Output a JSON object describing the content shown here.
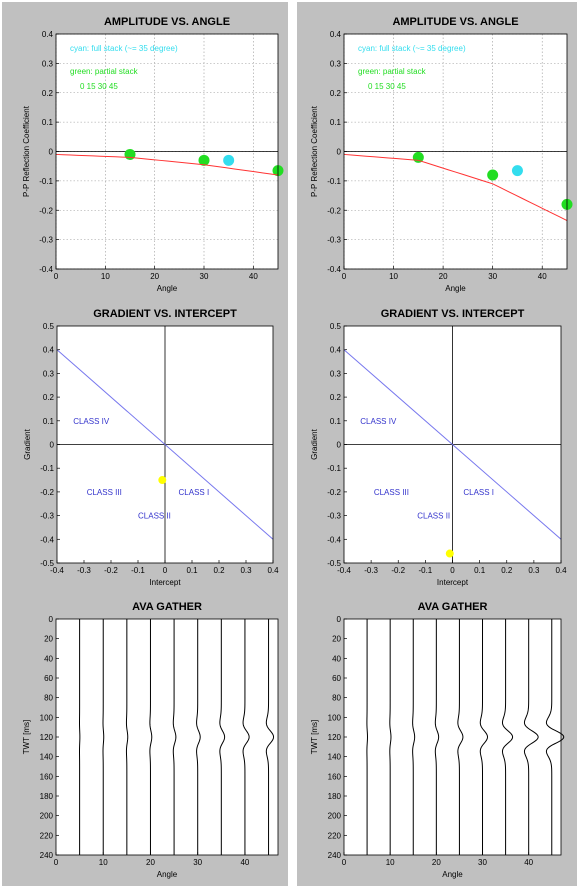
{
  "colors": {
    "panel_bg": "#c0c0c0",
    "plot_bg": "#ffffff",
    "partial_stack": "#22dd22",
    "full_stack": "#33ddee",
    "trend_line": "#ff3333",
    "intercept_line": "#7777ee",
    "class_label": "#3333cc",
    "gradient_intercept_point": "#ffff00",
    "wiggle": "#000000"
  },
  "chart_data": [
    {
      "id": "left-ava",
      "type": "scatter",
      "title": "AMPLITUDE VS. ANGLE",
      "xlabel": "Angle",
      "ylabel": "P-P Reflection Coefficient",
      "xlim": [
        0,
        45
      ],
      "ylim": [
        -0.4,
        0.4
      ],
      "xticks": [
        "0",
        "10",
        "20",
        "30",
        "40"
      ],
      "yticks": [
        "0.4",
        "0.3",
        "0.2",
        "0.1",
        "0",
        "-0.1",
        "-0.2",
        "-0.3",
        "-0.4"
      ],
      "grid": true,
      "annotations": [
        "cyan: full stack  (~=   35 degree)",
        "green: partial stack",
        "0  15  30  45"
      ],
      "series": [
        {
          "color": "#22dd22",
          "x": [
            15,
            30,
            45
          ],
          "y": [
            -0.01,
            -0.03,
            -0.065
          ]
        },
        {
          "color": "#33ddee",
          "x": [
            35
          ],
          "y": [
            -0.03
          ]
        },
        {
          "color": "#ff3333",
          "line": true,
          "x": [
            0,
            15,
            30,
            45
          ],
          "y": [
            -0.01,
            -0.02,
            -0.045,
            -0.08
          ]
        }
      ]
    },
    {
      "id": "right-ava",
      "type": "scatter",
      "title": "AMPLITUDE VS. ANGLE",
      "xlabel": "Angle",
      "ylabel": "P-P Reflection Coefficient",
      "xlim": [
        0,
        45
      ],
      "ylim": [
        -0.4,
        0.4
      ],
      "xticks": [
        "0",
        "10",
        "20",
        "30",
        "40"
      ],
      "yticks": [
        "0.4",
        "0.3",
        "0.2",
        "0.1",
        "0",
        "-0.1",
        "-0.2",
        "-0.3",
        "-0.4"
      ],
      "grid": true,
      "annotations": [
        "cyan: full stack  (~=   35 degree)",
        "green: partial stack",
        "0  15  30  45"
      ],
      "series": [
        {
          "color": "#22dd22",
          "x": [
            15,
            30,
            45
          ],
          "y": [
            -0.02,
            -0.08,
            -0.18
          ]
        },
        {
          "color": "#33ddee",
          "x": [
            35
          ],
          "y": [
            -0.065
          ]
        },
        {
          "color": "#ff3333",
          "line": true,
          "x": [
            0,
            15,
            30,
            45
          ],
          "y": [
            -0.01,
            -0.03,
            -0.11,
            -0.235
          ]
        }
      ]
    },
    {
      "id": "left-gi",
      "type": "scatter",
      "title": "GRADIENT VS. INTERCEPT",
      "xlabel": "Intercept",
      "ylabel": "Gradient",
      "xlim": [
        -0.4,
        0.4
      ],
      "ylim": [
        -0.5,
        0.5
      ],
      "xticks": [
        "-0.4",
        "-0.3",
        "-0.2",
        "-0.1",
        "0",
        "0.1",
        "0.2",
        "0.3",
        "0.4"
      ],
      "yticks": [
        "0.5",
        "0.4",
        "0.3",
        "0.2",
        "0.1",
        "0",
        "-0.1",
        "-0.2",
        "-0.3",
        "-0.4",
        "-0.5"
      ],
      "grid": false,
      "class_labels": [
        {
          "text": "CLASS IV",
          "x": -0.34,
          "y": 0.1
        },
        {
          "text": "CLASS III",
          "x": -0.29,
          "y": -0.2
        },
        {
          "text": "CLASS I",
          "x": 0.05,
          "y": -0.2
        },
        {
          "text": "CLASS II",
          "x": -0.1,
          "y": -0.3
        }
      ],
      "series": [
        {
          "color": "#7777ee",
          "line": true,
          "x": [
            -0.4,
            0.4
          ],
          "y": [
            0.4,
            -0.4
          ]
        },
        {
          "color": "#ffff00",
          "x": [
            -0.01
          ],
          "y": [
            -0.15
          ]
        }
      ]
    },
    {
      "id": "right-gi",
      "type": "scatter",
      "title": "GRADIENT VS. INTERCEPT",
      "xlabel": "Intercept",
      "ylabel": "Gradient",
      "xlim": [
        -0.4,
        0.4
      ],
      "ylim": [
        -0.5,
        0.5
      ],
      "xticks": [
        "-0.4",
        "-0.3",
        "-0.2",
        "-0.1",
        "0",
        "0.1",
        "0.2",
        "0.3",
        "0.4"
      ],
      "yticks": [
        "0.5",
        "0.4",
        "0.3",
        "0.2",
        "0.1",
        "0",
        "-0.1",
        "-0.2",
        "-0.3",
        "-0.4",
        "-0.5"
      ],
      "grid": false,
      "class_labels": [
        {
          "text": "CLASS IV",
          "x": -0.34,
          "y": 0.1
        },
        {
          "text": "CLASS III",
          "x": -0.29,
          "y": -0.2
        },
        {
          "text": "CLASS I",
          "x": 0.04,
          "y": -0.2
        },
        {
          "text": "CLASS II",
          "x": -0.13,
          "y": -0.3
        }
      ],
      "series": [
        {
          "color": "#7777ee",
          "line": true,
          "x": [
            -0.4,
            0.4
          ],
          "y": [
            0.4,
            -0.4
          ]
        },
        {
          "color": "#ffff00",
          "x": [
            -0.01
          ],
          "y": [
            -0.46
          ]
        }
      ]
    },
    {
      "id": "left-gather",
      "type": "line",
      "title": "AVA GATHER",
      "xlabel": "Angle",
      "ylabel": "TWT [ms]",
      "xlim": [
        0,
        47
      ],
      "ylim": [
        240,
        0
      ],
      "xticks": [
        "0",
        "10",
        "20",
        "30",
        "40"
      ],
      "yticks": [
        "0",
        "20",
        "40",
        "60",
        "80",
        "100",
        "120",
        "140",
        "160",
        "180",
        "200",
        "220",
        "240"
      ],
      "grid": false,
      "event_ms": 120,
      "traces": [
        {
          "angle": 5,
          "amp": 0.25
        },
        {
          "angle": 10,
          "amp": 0.5
        },
        {
          "angle": 15,
          "amp": 0.9
        },
        {
          "angle": 20,
          "amp": 1.3
        },
        {
          "angle": 25,
          "amp": 1.8
        },
        {
          "angle": 30,
          "amp": 2.5
        },
        {
          "angle": 35,
          "amp": 3.3
        },
        {
          "angle": 40,
          "amp": 4.2
        },
        {
          "angle": 45,
          "amp": 5.0
        }
      ]
    },
    {
      "id": "right-gather",
      "type": "line",
      "title": "AVA GATHER",
      "xlabel": "Angle",
      "ylabel": "TWT [ms]",
      "xlim": [
        0,
        47
      ],
      "ylim": [
        240,
        0
      ],
      "xticks": [
        "0",
        "10",
        "20",
        "30",
        "40"
      ],
      "yticks": [
        "0",
        "20",
        "40",
        "60",
        "80",
        "100",
        "120",
        "140",
        "160",
        "180",
        "200",
        "220",
        "240"
      ],
      "grid": false,
      "event_ms": 120,
      "traces": [
        {
          "angle": 5,
          "amp": 0.4
        },
        {
          "angle": 10,
          "amp": 0.8
        },
        {
          "angle": 15,
          "amp": 1.4
        },
        {
          "angle": 20,
          "amp": 2.3
        },
        {
          "angle": 25,
          "amp": 3.5
        },
        {
          "angle": 30,
          "amp": 5.0
        },
        {
          "angle": 35,
          "amp": 7.0
        },
        {
          "angle": 40,
          "amp": 9.5
        },
        {
          "angle": 45,
          "amp": 12.0
        }
      ]
    }
  ]
}
